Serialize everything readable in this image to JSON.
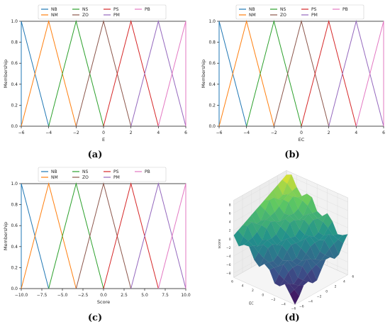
{
  "colors": {
    "NB": "#1f77b4",
    "NM": "#ff7f0e",
    "NS": "#2ca02c",
    "ZO": "#8c564b",
    "PS": "#d62728",
    "PM": "#9467bd",
    "PB": "#e377c2"
  },
  "captions": [
    "(a)",
    "(b)",
    "(c)",
    "(d)"
  ],
  "chart_data": [
    {
      "type": "line",
      "xlabel": "E",
      "ylabel": "Membership",
      "xlim": [
        -6,
        6
      ],
      "ylim": [
        0,
        1
      ],
      "xticks": [
        -6,
        -4,
        -2,
        0,
        2,
        4,
        6
      ],
      "yticks": [
        0.0,
        0.2,
        0.4,
        0.6,
        0.8,
        1.0
      ],
      "xtick_labels": [
        "−6",
        "−4",
        "−2",
        "0",
        "2",
        "4",
        "6"
      ],
      "ytick_labels": [
        "0.0",
        "0.2",
        "0.4",
        "0.6",
        "0.8",
        "1.0"
      ],
      "legend": "top, outside, 4 columns",
      "series": [
        {
          "name": "NB",
          "x": [
            -6,
            -6,
            -4
          ],
          "y": [
            0,
            1,
            0
          ]
        },
        {
          "name": "NM",
          "x": [
            -6,
            -4,
            -2
          ],
          "y": [
            0,
            1,
            0
          ]
        },
        {
          "name": "NS",
          "x": [
            -4,
            -2,
            0
          ],
          "y": [
            0,
            1,
            0
          ]
        },
        {
          "name": "ZO",
          "x": [
            -2,
            0,
            2
          ],
          "y": [
            0,
            1,
            0
          ]
        },
        {
          "name": "PS",
          "x": [
            0,
            2,
            4
          ],
          "y": [
            0,
            1,
            0
          ]
        },
        {
          "name": "PM",
          "x": [
            2,
            4,
            6
          ],
          "y": [
            0,
            1,
            0
          ]
        },
        {
          "name": "PB",
          "x": [
            4,
            6,
            6
          ],
          "y": [
            0,
            1,
            0
          ]
        }
      ]
    },
    {
      "type": "line",
      "xlabel": "EC",
      "ylabel": "Membership",
      "xlim": [
        -6,
        6
      ],
      "ylim": [
        0,
        1
      ],
      "xticks": [
        -6,
        -4,
        -2,
        0,
        2,
        4,
        6
      ],
      "yticks": [
        0.0,
        0.2,
        0.4,
        0.6,
        0.8,
        1.0
      ],
      "xtick_labels": [
        "−6",
        "−4",
        "−2",
        "0",
        "2",
        "4",
        "6"
      ],
      "ytick_labels": [
        "0.0",
        "0.2",
        "0.4",
        "0.6",
        "0.8",
        "1.0"
      ],
      "legend": "top, outside, 4 columns",
      "series": [
        {
          "name": "NB",
          "x": [
            -6,
            -6,
            -4
          ],
          "y": [
            0,
            1,
            0
          ]
        },
        {
          "name": "NM",
          "x": [
            -6,
            -4,
            -2
          ],
          "y": [
            0,
            1,
            0
          ]
        },
        {
          "name": "NS",
          "x": [
            -4,
            -2,
            0
          ],
          "y": [
            0,
            1,
            0
          ]
        },
        {
          "name": "ZO",
          "x": [
            -2,
            0,
            2
          ],
          "y": [
            0,
            1,
            0
          ]
        },
        {
          "name": "PS",
          "x": [
            0,
            2,
            4
          ],
          "y": [
            0,
            1,
            0
          ]
        },
        {
          "name": "PM",
          "x": [
            2,
            4,
            6
          ],
          "y": [
            0,
            1,
            0
          ]
        },
        {
          "name": "PB",
          "x": [
            4,
            6,
            6
          ],
          "y": [
            0,
            1,
            0
          ]
        }
      ]
    },
    {
      "type": "line",
      "xlabel": "Score",
      "ylabel": "Membership",
      "xlim": [
        -10,
        10
      ],
      "ylim": [
        0,
        1
      ],
      "xticks": [
        -10,
        -7.5,
        -5,
        -2.5,
        0,
        2.5,
        5,
        7.5,
        10
      ],
      "yticks": [
        0.0,
        0.2,
        0.4,
        0.6,
        0.8,
        1.0
      ],
      "xtick_labels": [
        "−10.0",
        "−7.5",
        "−5.0",
        "−2.5",
        "0.0",
        "2.5",
        "5.0",
        "7.5",
        "10.0"
      ],
      "ytick_labels": [
        "0.0",
        "0.2",
        "0.4",
        "0.6",
        "0.8",
        "1.0"
      ],
      "legend": "top, outside, 4 columns",
      "series": [
        {
          "name": "NB",
          "x": [
            -10,
            -10,
            -6.67
          ],
          "y": [
            0,
            1,
            0
          ]
        },
        {
          "name": "NM",
          "x": [
            -10,
            -6.67,
            -3.33
          ],
          "y": [
            0,
            1,
            0
          ]
        },
        {
          "name": "NS",
          "x": [
            -6.67,
            -3.33,
            0
          ],
          "y": [
            0,
            1,
            0
          ]
        },
        {
          "name": "ZO",
          "x": [
            -3.33,
            0,
            3.33
          ],
          "y": [
            0,
            1,
            0
          ]
        },
        {
          "name": "PS",
          "x": [
            0,
            3.33,
            6.67
          ],
          "y": [
            0,
            1,
            0
          ]
        },
        {
          "name": "PM",
          "x": [
            3.33,
            6.67,
            10
          ],
          "y": [
            0,
            1,
            0
          ]
        },
        {
          "name": "PB",
          "x": [
            6.67,
            10,
            10
          ],
          "y": [
            0,
            1,
            0
          ]
        }
      ]
    },
    {
      "type": "surface3d",
      "xlabel": "EC",
      "ylabel": "",
      "zlabel": "score",
      "xticks": [
        "6",
        "4",
        "2",
        "0",
        "−2",
        "−4",
        "−6"
      ],
      "yticks": [
        "−6",
        "−4",
        "−2",
        "0",
        "2",
        "4",
        "6"
      ],
      "zticks": [
        "−8",
        "−6",
        "−4",
        "−2",
        "0",
        "2",
        "4",
        "6",
        "8"
      ],
      "colormap": "viridis"
    }
  ]
}
